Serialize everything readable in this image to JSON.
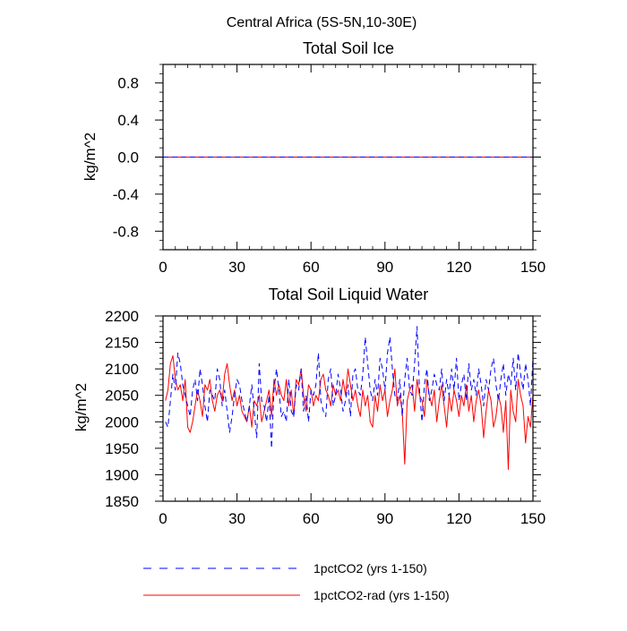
{
  "chart_data": [
    {
      "type": "line",
      "suptitle": "Central Africa (5S-5N,10-30E)",
      "title": "Total Soil Ice",
      "xlabel": "",
      "ylabel": "kg/m^2",
      "xlim": [
        0,
        150
      ],
      "ylim": [
        -1.0,
        1.0
      ],
      "xticks": [
        0,
        30,
        60,
        90,
        120,
        150
      ],
      "xtick_labels": [
        "0",
        "30",
        "60",
        "90",
        "120",
        "150"
      ],
      "yticks": [
        0.8,
        0.4,
        0.0,
        -0.4,
        -0.8
      ],
      "ytick_labels": [
        "0.8",
        "0.4",
        "0.0",
        "-0.4",
        "-0.8"
      ],
      "grid": false,
      "series": [
        {
          "name": "1pctCO2 (yrs 1-150)",
          "color": "#0000ff",
          "style": "dashed",
          "x": [
            0,
            150
          ],
          "y": [
            0,
            0
          ]
        },
        {
          "name": "1pctCO2-rad (yrs 1-150)",
          "color": "#ff0000",
          "style": "solid",
          "x": [
            0,
            150
          ],
          "y": [
            0,
            0
          ]
        }
      ]
    },
    {
      "type": "line",
      "title": "Total Soil Liquid Water",
      "xlabel": "",
      "ylabel": "kg/m^2",
      "xlim": [
        0,
        150
      ],
      "ylim": [
        1850,
        2200
      ],
      "xticks": [
        0,
        30,
        60,
        90,
        120,
        150
      ],
      "xtick_labels": [
        "0",
        "30",
        "60",
        "90",
        "120",
        "150"
      ],
      "yticks": [
        2200,
        2150,
        2100,
        2050,
        2000,
        1950,
        1900,
        1850
      ],
      "ytick_labels": [
        "2200",
        "2150",
        "2100",
        "2050",
        "2000",
        "1950",
        "1900",
        "1850"
      ],
      "grid": false,
      "series": [
        {
          "name": "1pctCO2 (yrs 1-150)",
          "color": "#0000ff",
          "style": "dashed",
          "x_start": 1,
          "y": [
            2000,
            1990,
            2040,
            2090,
            2060,
            2130,
            2110,
            2070,
            2050,
            2030,
            2010,
            2060,
            2080,
            2040,
            2100,
            2070,
            2030,
            2000,
            2060,
            2050,
            2040,
            2100,
            2080,
            2030,
            2060,
            2020,
            1980,
            2010,
            2050,
            2080,
            2070,
            2040,
            2020,
            2000,
            2030,
            2070,
            2020,
            1970,
            2110,
            2040,
            2030,
            2000,
            2050,
            1950,
            2060,
            2100,
            2060,
            2010,
            2020,
            2000,
            2080,
            2020,
            2010,
            2070,
            2060,
            2100,
            2020,
            2050,
            2000,
            2060,
            2050,
            2070,
            2130,
            2040,
            2020,
            2010,
            2080,
            2100,
            2030,
            2050,
            2090,
            2060,
            2020,
            2040,
            2070,
            2010,
            2090,
            2100,
            2060,
            2050,
            2090,
            2160,
            2110,
            2060,
            2040,
            2080,
            2050,
            2120,
            2100,
            2060,
            2130,
            2160,
            2100,
            2050,
            2040,
            2080,
            2010,
            2080,
            2120,
            2060,
            2050,
            2110,
            2180,
            2060,
            2000,
            2070,
            2100,
            2040,
            2060,
            2090,
            2070,
            2060,
            2100,
            2040,
            2080,
            2050,
            2100,
            2060,
            2120,
            2040,
            2070,
            2090,
            2040,
            2110,
            2060,
            2080,
            2050,
            2100,
            2070,
            2030,
            2080,
            2060,
            2100,
            2120,
            2070,
            2040,
            2080,
            2110,
            2050,
            2090,
            2070,
            2120,
            2060,
            2130,
            2090,
            2060,
            2110,
            2080,
            2030,
            2120
          ]
        },
        {
          "name": "1pctCO2-rad (yrs 1-150)",
          "color": "#ff0000",
          "style": "solid",
          "x_start": 1,
          "y": [
            2040,
            2060,
            2110,
            2125,
            2080,
            2060,
            2070,
            2040,
            2080,
            1990,
            1980,
            2000,
            2030,
            2060,
            2040,
            2010,
            2070,
            2060,
            2080,
            2040,
            2020,
            2050,
            2060,
            2040,
            2090,
            2110,
            2070,
            2040,
            2060,
            2030,
            2050,
            2020,
            2010,
            2000,
            2030,
            1990,
            2040,
            2030,
            2050,
            2000,
            2020,
            2040,
            2060,
            2010,
            2080,
            2050,
            2070,
            2050,
            2040,
            2080,
            2030,
            2060,
            2010,
            2080,
            2070,
            2100,
            2050,
            2020,
            2070,
            2060,
            2030,
            2050,
            2040,
            2080,
            2090,
            2060,
            2050,
            2030,
            2070,
            2050,
            2060,
            2040,
            2080,
            2050,
            2100,
            2070,
            2040,
            2060,
            2030,
            2010,
            2060,
            2030,
            2050,
            2000,
            1990,
            2050,
            2020,
            2070,
            2040,
            2060,
            2010,
            2040,
            2060,
            2100,
            2030,
            2050,
            2020,
            1920,
            2040,
            2060,
            2070,
            2020,
            2080,
            2050,
            2040,
            2010,
            2080,
            2050,
            2030,
            2060,
            2000,
            2040,
            2070,
            2030,
            1990,
            2050,
            2020,
            2060,
            2040,
            2010,
            2050,
            2030,
            2070,
            2020,
            2050,
            2000,
            2040,
            2060,
            2030,
            1970,
            2020,
            2060,
            2040,
            1990,
            2010,
            2050,
            2030,
            1980,
            2040,
            1910,
            2060,
            2020,
            2000,
            2080,
            2050,
            2030,
            1960,
            2010,
            1990,
            2050
          ]
        }
      ]
    }
  ]
}
